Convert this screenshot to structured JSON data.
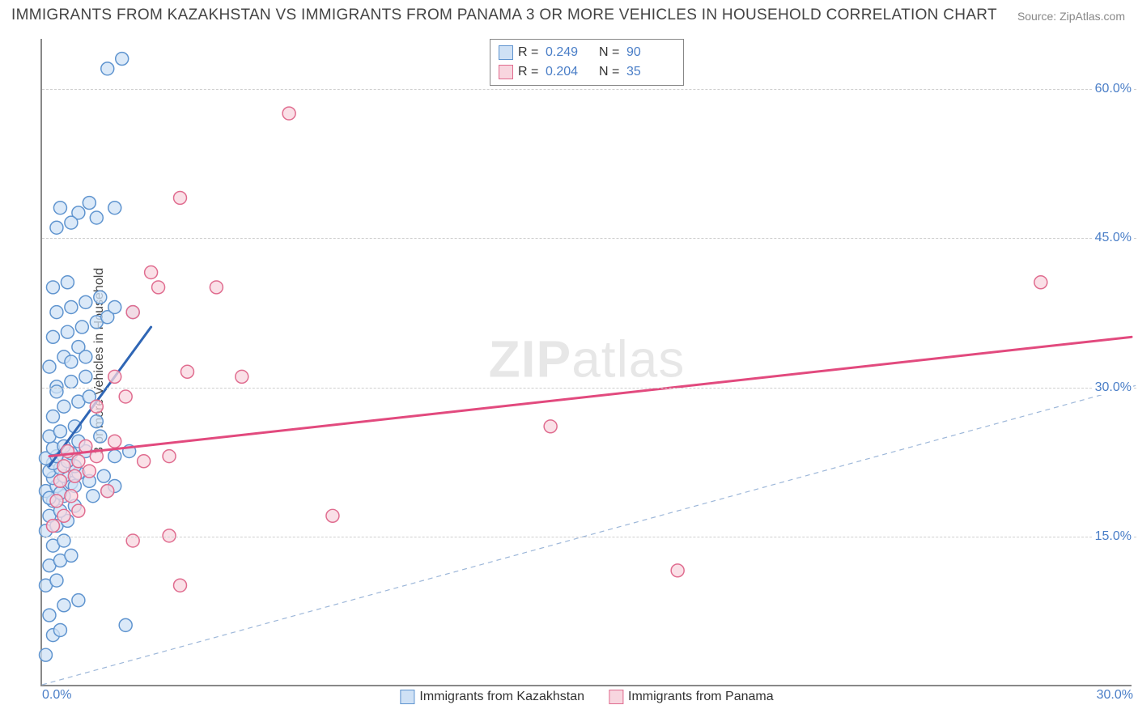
{
  "title": "IMMIGRANTS FROM KAZAKHSTAN VS IMMIGRANTS FROM PANAMA 3 OR MORE VEHICLES IN HOUSEHOLD CORRELATION CHART",
  "source": "Source: ZipAtlas.com",
  "ylabel": "3 or more Vehicles in Household",
  "watermark": {
    "bold": "ZIP",
    "rest": "atlas"
  },
  "chart": {
    "type": "scatter",
    "xlim": [
      0,
      30
    ],
    "ylim": [
      0,
      65
    ],
    "x_ticks": [
      "0.0%",
      "30.0%"
    ],
    "y_ticks": [
      {
        "value": 15,
        "label": "15.0%"
      },
      {
        "value": 30,
        "label": "30.0%"
      },
      {
        "value": 45,
        "label": "45.0%"
      },
      {
        "value": 60,
        "label": "60.0%"
      }
    ],
    "background_color": "#ffffff",
    "grid_color": "#cfcfcf",
    "axis_color": "#888888",
    "tick_text_color": "#4a7ec7",
    "marker_radius": 8,
    "marker_stroke_width": 1.5,
    "equality_line": {
      "color": "#9db7d9",
      "dash": "6,5",
      "width": 1.2,
      "from": [
        0,
        0
      ],
      "to": [
        65,
        65
      ]
    },
    "series": [
      {
        "name": "Immigrants from Kazakhstan",
        "fill": "#cfe1f5",
        "stroke": "#5f94cf",
        "R": "0.249",
        "N": "90",
        "trend": {
          "from": [
            0.2,
            22.0
          ],
          "to": [
            3.0,
            36.0
          ],
          "color": "#2f66b5",
          "width": 3
        },
        "points": [
          [
            0.1,
            3.0
          ],
          [
            0.3,
            5.0
          ],
          [
            0.5,
            5.5
          ],
          [
            0.2,
            7.0
          ],
          [
            0.6,
            8.0
          ],
          [
            1.0,
            8.5
          ],
          [
            0.1,
            10.0
          ],
          [
            0.4,
            10.5
          ],
          [
            0.2,
            12.0
          ],
          [
            0.5,
            12.5
          ],
          [
            0.8,
            13.0
          ],
          [
            0.3,
            14.0
          ],
          [
            0.6,
            14.5
          ],
          [
            0.1,
            15.5
          ],
          [
            0.4,
            16.0
          ],
          [
            0.7,
            16.5
          ],
          [
            0.2,
            17.0
          ],
          [
            0.5,
            17.5
          ],
          [
            0.9,
            18.0
          ],
          [
            0.3,
            18.5
          ],
          [
            0.6,
            19.0
          ],
          [
            0.1,
            19.5
          ],
          [
            0.4,
            20.0
          ],
          [
            0.8,
            20.3
          ],
          [
            0.3,
            20.8
          ],
          [
            0.6,
            21.0
          ],
          [
            1.0,
            21.3
          ],
          [
            0.2,
            21.5
          ],
          [
            0.5,
            21.8
          ],
          [
            0.9,
            22.0
          ],
          [
            0.3,
            22.3
          ],
          [
            0.7,
            22.5
          ],
          [
            0.1,
            22.8
          ],
          [
            0.4,
            23.0
          ],
          [
            0.8,
            23.3
          ],
          [
            1.2,
            23.5
          ],
          [
            0.3,
            23.8
          ],
          [
            0.6,
            24.0
          ],
          [
            1.0,
            24.5
          ],
          [
            0.2,
            25.0
          ],
          [
            0.5,
            25.5
          ],
          [
            0.9,
            26.0
          ],
          [
            1.4,
            19.0
          ],
          [
            1.8,
            19.5
          ],
          [
            2.0,
            23.0
          ],
          [
            2.4,
            23.5
          ],
          [
            1.5,
            26.5
          ],
          [
            0.3,
            27.0
          ],
          [
            0.6,
            28.0
          ],
          [
            1.0,
            28.5
          ],
          [
            1.3,
            29.0
          ],
          [
            0.4,
            30.0
          ],
          [
            0.8,
            30.5
          ],
          [
            1.2,
            31.0
          ],
          [
            0.2,
            32.0
          ],
          [
            0.6,
            33.0
          ],
          [
            1.0,
            34.0
          ],
          [
            0.3,
            35.0
          ],
          [
            0.7,
            35.5
          ],
          [
            1.1,
            36.0
          ],
          [
            1.5,
            36.5
          ],
          [
            1.8,
            37.0
          ],
          [
            0.4,
            37.5
          ],
          [
            0.8,
            38.0
          ],
          [
            1.2,
            38.5
          ],
          [
            1.6,
            39.0
          ],
          [
            2.0,
            38.0
          ],
          [
            2.5,
            37.5
          ],
          [
            0.3,
            40.0
          ],
          [
            0.7,
            40.5
          ],
          [
            1.5,
            47.0
          ],
          [
            1.0,
            47.5
          ],
          [
            0.4,
            46.0
          ],
          [
            0.8,
            46.5
          ],
          [
            2.0,
            48.0
          ],
          [
            1.3,
            48.5
          ],
          [
            0.5,
            48.0
          ],
          [
            1.8,
            62.0
          ],
          [
            2.2,
            63.0
          ],
          [
            0.2,
            18.8
          ],
          [
            0.5,
            19.3
          ],
          [
            0.9,
            20.0
          ],
          [
            1.3,
            20.5
          ],
          [
            1.7,
            21.0
          ],
          [
            0.4,
            29.5
          ],
          [
            0.8,
            32.5
          ],
          [
            1.2,
            33.0
          ],
          [
            1.6,
            25.0
          ],
          [
            2.0,
            20.0
          ],
          [
            2.3,
            6.0
          ]
        ]
      },
      {
        "name": "Immigrants from Panama",
        "fill": "#f8d6df",
        "stroke": "#e06c8f",
        "R": "0.204",
        "N": "35",
        "trend": {
          "from": [
            0.2,
            23.0
          ],
          "to": [
            30.0,
            35.0
          ],
          "color": "#e24a7e",
          "width": 3
        },
        "points": [
          [
            0.3,
            16.0
          ],
          [
            0.6,
            17.0
          ],
          [
            1.0,
            17.5
          ],
          [
            0.4,
            18.5
          ],
          [
            0.8,
            19.0
          ],
          [
            0.5,
            20.5
          ],
          [
            0.9,
            21.0
          ],
          [
            1.3,
            21.5
          ],
          [
            0.6,
            22.0
          ],
          [
            1.0,
            22.5
          ],
          [
            1.5,
            23.0
          ],
          [
            0.7,
            23.5
          ],
          [
            1.2,
            24.0
          ],
          [
            2.0,
            24.5
          ],
          [
            2.8,
            22.5
          ],
          [
            3.5,
            23.0
          ],
          [
            1.5,
            28.0
          ],
          [
            2.3,
            29.0
          ],
          [
            2.0,
            31.0
          ],
          [
            4.0,
            31.5
          ],
          [
            5.5,
            31.0
          ],
          [
            2.5,
            37.5
          ],
          [
            3.2,
            40.0
          ],
          [
            4.8,
            40.0
          ],
          [
            3.0,
            41.5
          ],
          [
            3.8,
            49.0
          ],
          [
            6.8,
            57.5
          ],
          [
            2.5,
            14.5
          ],
          [
            3.5,
            15.0
          ],
          [
            3.8,
            10.0
          ],
          [
            8.0,
            17.0
          ],
          [
            14.0,
            26.0
          ],
          [
            17.5,
            11.5
          ],
          [
            27.5,
            40.5
          ],
          [
            1.8,
            19.5
          ]
        ]
      }
    ]
  }
}
